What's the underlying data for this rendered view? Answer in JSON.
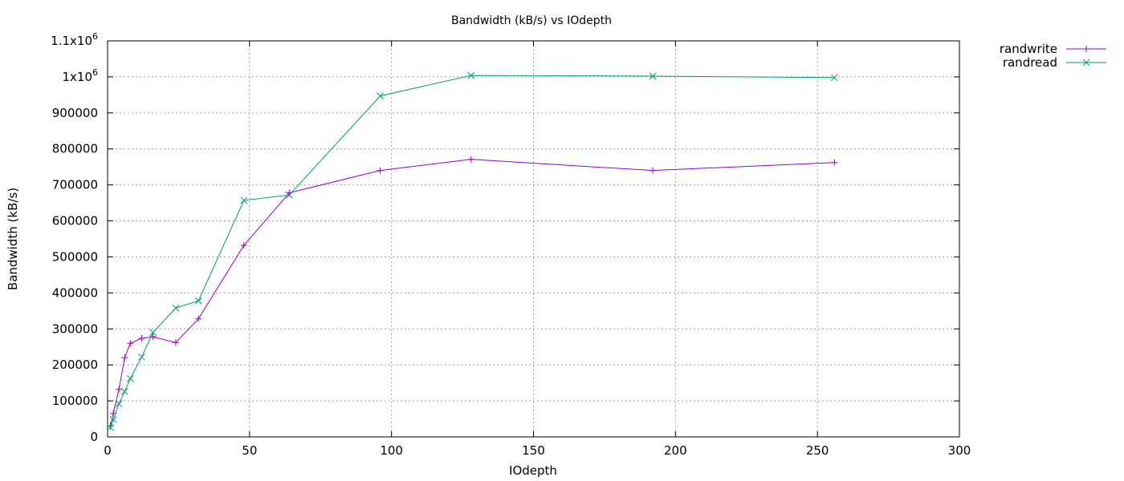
{
  "chart_data": {
    "type": "line",
    "title": "Bandwidth (kB/s) vs IOdepth",
    "xlabel": "IOdepth",
    "ylabel": "Bandwidth (kB/s)",
    "xlim": [
      0,
      300
    ],
    "ylim": [
      0,
      1100000
    ],
    "xticks": [
      {
        "value": 0,
        "label": "0"
      },
      {
        "value": 50,
        "label": "50"
      },
      {
        "value": 100,
        "label": "100"
      },
      {
        "value": 150,
        "label": "150"
      },
      {
        "value": 200,
        "label": "200"
      },
      {
        "value": 250,
        "label": "250"
      },
      {
        "value": 300,
        "label": "300"
      }
    ],
    "yticks": [
      {
        "value": 0,
        "label": "0"
      },
      {
        "value": 100000,
        "label": "100000"
      },
      {
        "value": 200000,
        "label": "200000"
      },
      {
        "value": 300000,
        "label": "300000"
      },
      {
        "value": 400000,
        "label": "400000"
      },
      {
        "value": 500000,
        "label": "500000"
      },
      {
        "value": 600000,
        "label": "600000"
      },
      {
        "value": 700000,
        "label": "700000"
      },
      {
        "value": 800000,
        "label": "800000"
      },
      {
        "value": 900000,
        "label": "900000"
      },
      {
        "value": 1000000,
        "label": "1x10",
        "exp": "6"
      },
      {
        "value": 1100000,
        "label": "1.1x10",
        "exp": "6"
      }
    ],
    "grid": true,
    "legend_position": "outside-top-right",
    "series": [
      {
        "name": "randwrite",
        "color": "#9400d3",
        "marker": "plus",
        "x": [
          1,
          2,
          4,
          6,
          8,
          12,
          16,
          24,
          32,
          48,
          64,
          96,
          128,
          192,
          256
        ],
        "y": [
          30000,
          65000,
          132000,
          220000,
          260000,
          274000,
          278000,
          262000,
          328000,
          532000,
          678000,
          740000,
          771000,
          740000,
          762000
        ]
      },
      {
        "name": "randread",
        "color": "#009e73",
        "marker": "cross",
        "x": [
          1,
          2,
          4,
          6,
          8,
          12,
          16,
          24,
          32,
          48,
          64,
          96,
          128,
          192,
          256
        ],
        "y": [
          26000,
          48000,
          92000,
          126000,
          162000,
          222000,
          290000,
          358000,
          378000,
          657000,
          672000,
          947000,
          1004000,
          1002000,
          998000
        ]
      }
    ]
  }
}
